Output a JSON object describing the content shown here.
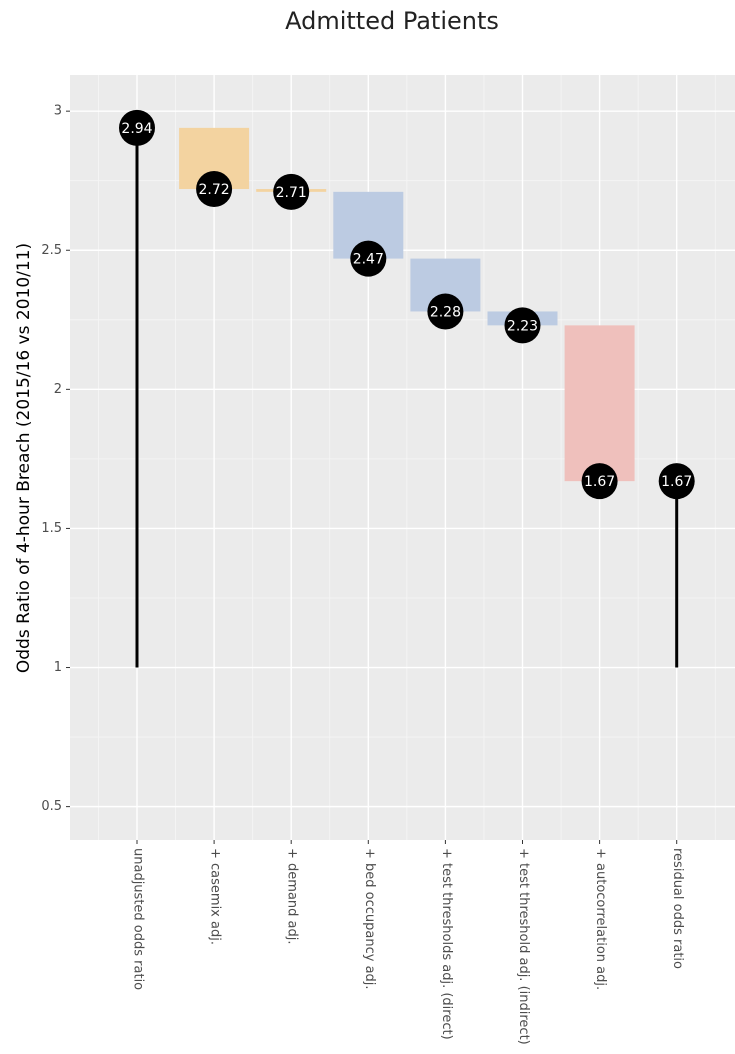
{
  "chart_data": {
    "type": "waterfall",
    "title": "Admitted Patients",
    "y_label": "Odds Ratio of 4-hour Breach (2015/16 vs 2010/11)",
    "categories": [
      "unadjusted odds ratio",
      "+ casemix adj.",
      "+ demand adj.",
      "+ bed occupancy adj.",
      "+ test thresholds adj. (direct)",
      "+ test threshold adj. (indirect)",
      "+ autocorrelation adj.",
      "residual odds ratio"
    ],
    "values": [
      2.94,
      2.72,
      2.71,
      2.47,
      2.28,
      2.23,
      1.67,
      1.67
    ],
    "colors": [
      "#000000",
      "#f3d3a0",
      "#f3d3a0",
      "#bccbe2",
      "#bccbe2",
      "#bccbe2",
      "#efc0bc",
      "#000000"
    ],
    "baseline": 1,
    "ylim": [
      0.38,
      3.13
    ],
    "yticks": [
      0.5,
      1,
      1.5,
      2,
      2.5,
      3
    ],
    "grid": true
  }
}
